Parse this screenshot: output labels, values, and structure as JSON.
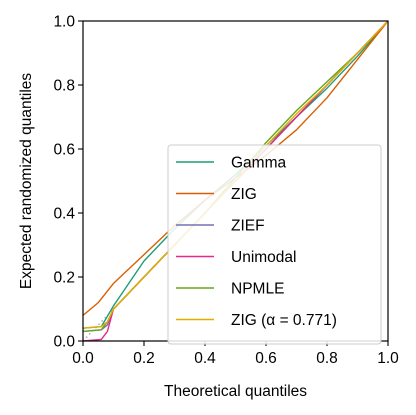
{
  "chart_data": {
    "type": "line",
    "title": "",
    "xlabel": "Theoretical quantiles",
    "ylabel": "Expected randomized quantiles",
    "xlim": [
      0,
      1
    ],
    "ylim": [
      0,
      1
    ],
    "xticks": [
      "0.0",
      "0.2",
      "0.4",
      "0.6",
      "0.8",
      "1.0"
    ],
    "yticks": [
      "0.0",
      "0.2",
      "0.4",
      "0.6",
      "0.8",
      "1.0"
    ],
    "grid": false,
    "legend_position": "lower-right",
    "reference_line": {
      "x": [
        0,
        1
      ],
      "y": [
        0,
        1
      ],
      "style": "dotted",
      "color": "#aaaaaa"
    },
    "series": [
      {
        "name": "Gamma",
        "color": "#1b9e77",
        "x": [
          0.0,
          0.06,
          0.1,
          0.15,
          0.2,
          0.3,
          0.4,
          0.5,
          0.6,
          0.7,
          0.8,
          0.9,
          1.0
        ],
        "y": [
          0.04,
          0.045,
          0.11,
          0.18,
          0.25,
          0.35,
          0.44,
          0.52,
          0.61,
          0.7,
          0.79,
          0.89,
          1.0
        ]
      },
      {
        "name": "ZIG",
        "color": "#d95f02",
        "x": [
          0.0,
          0.05,
          0.1,
          0.2,
          0.3,
          0.4,
          0.5,
          0.6,
          0.7,
          0.8,
          0.9,
          1.0
        ],
        "y": [
          0.08,
          0.12,
          0.18,
          0.27,
          0.36,
          0.44,
          0.51,
          0.58,
          0.66,
          0.76,
          0.88,
          1.0
        ]
      },
      {
        "name": "ZIEF",
        "color": "#7570b3",
        "x": [
          0.0,
          0.06,
          0.08,
          0.1,
          0.15,
          0.2,
          0.3,
          0.4,
          0.5,
          0.6,
          0.7,
          0.8,
          0.9,
          1.0
        ],
        "y": [
          0.03,
          0.035,
          0.05,
          0.1,
          0.15,
          0.2,
          0.3,
          0.4,
          0.5,
          0.6,
          0.7,
          0.8,
          0.9,
          1.0
        ]
      },
      {
        "name": "Unimodal",
        "color": "#e7298a",
        "x": [
          0.0,
          0.06,
          0.08,
          0.1,
          0.15,
          0.2,
          0.3,
          0.4,
          0.5,
          0.6,
          0.7,
          0.8,
          0.9,
          1.0
        ],
        "y": [
          0.0,
          0.005,
          0.03,
          0.1,
          0.15,
          0.2,
          0.3,
          0.4,
          0.5,
          0.6,
          0.7,
          0.8,
          0.9,
          1.0
        ]
      },
      {
        "name": "NPMLE",
        "color": "#66a61e",
        "x": [
          0.0,
          0.06,
          0.08,
          0.1,
          0.15,
          0.2,
          0.3,
          0.4,
          0.5,
          0.6,
          0.7,
          0.8,
          0.9,
          1.0
        ],
        "y": [
          0.03,
          0.035,
          0.06,
          0.1,
          0.15,
          0.2,
          0.3,
          0.4,
          0.51,
          0.62,
          0.72,
          0.81,
          0.9,
          1.0
        ]
      },
      {
        "name": "ZIG (α = 0.771)",
        "color": "#e6ab02",
        "x": [
          0.0,
          0.06,
          0.08,
          0.1,
          0.15,
          0.2,
          0.3,
          0.4,
          0.5,
          0.6,
          0.7,
          0.8,
          0.9,
          1.0
        ],
        "y": [
          0.04,
          0.045,
          0.06,
          0.1,
          0.15,
          0.2,
          0.3,
          0.4,
          0.5,
          0.61,
          0.71,
          0.8,
          0.9,
          1.0
        ]
      }
    ]
  }
}
